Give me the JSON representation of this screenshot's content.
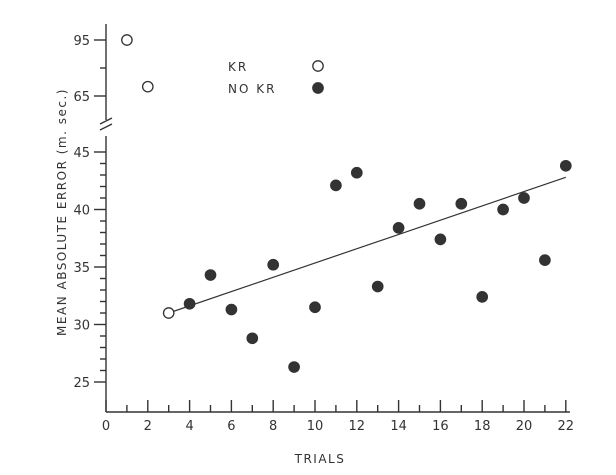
{
  "chart_data": {
    "type": "scatter",
    "xlabel": "TRIALS",
    "ylabel": "MEAN ABSOLUTE ERROR (m. sec.)",
    "xlim": [
      0,
      22
    ],
    "x_ticks": [
      0,
      2,
      4,
      6,
      8,
      10,
      12,
      14,
      16,
      18,
      20,
      22
    ],
    "y_ticks": [
      25,
      30,
      35,
      40,
      45,
      65,
      95
    ],
    "y_axis_break": [
      45,
      65
    ],
    "grid": false,
    "legend_position": "top-center",
    "series": [
      {
        "name": "KR",
        "marker": "open-circle",
        "x": [
          1,
          2,
          3
        ],
        "y": [
          95,
          70,
          31
        ]
      },
      {
        "name": "NO KR",
        "marker": "filled-circle",
        "x": [
          4,
          5,
          6,
          7,
          8,
          9,
          10,
          11,
          12,
          13,
          14,
          15,
          16,
          17,
          18,
          19,
          20,
          21,
          22
        ],
        "y": [
          31.8,
          34.3,
          31.3,
          28.8,
          35.2,
          26.3,
          31.5,
          42.1,
          43.2,
          33.3,
          38.4,
          40.5,
          37.4,
          40.5,
          32.4,
          40.0,
          41.0,
          35.6,
          43.8
        ]
      }
    ],
    "trend_line": {
      "x": [
        3,
        22
      ],
      "y": [
        31.0,
        42.8
      ]
    }
  }
}
